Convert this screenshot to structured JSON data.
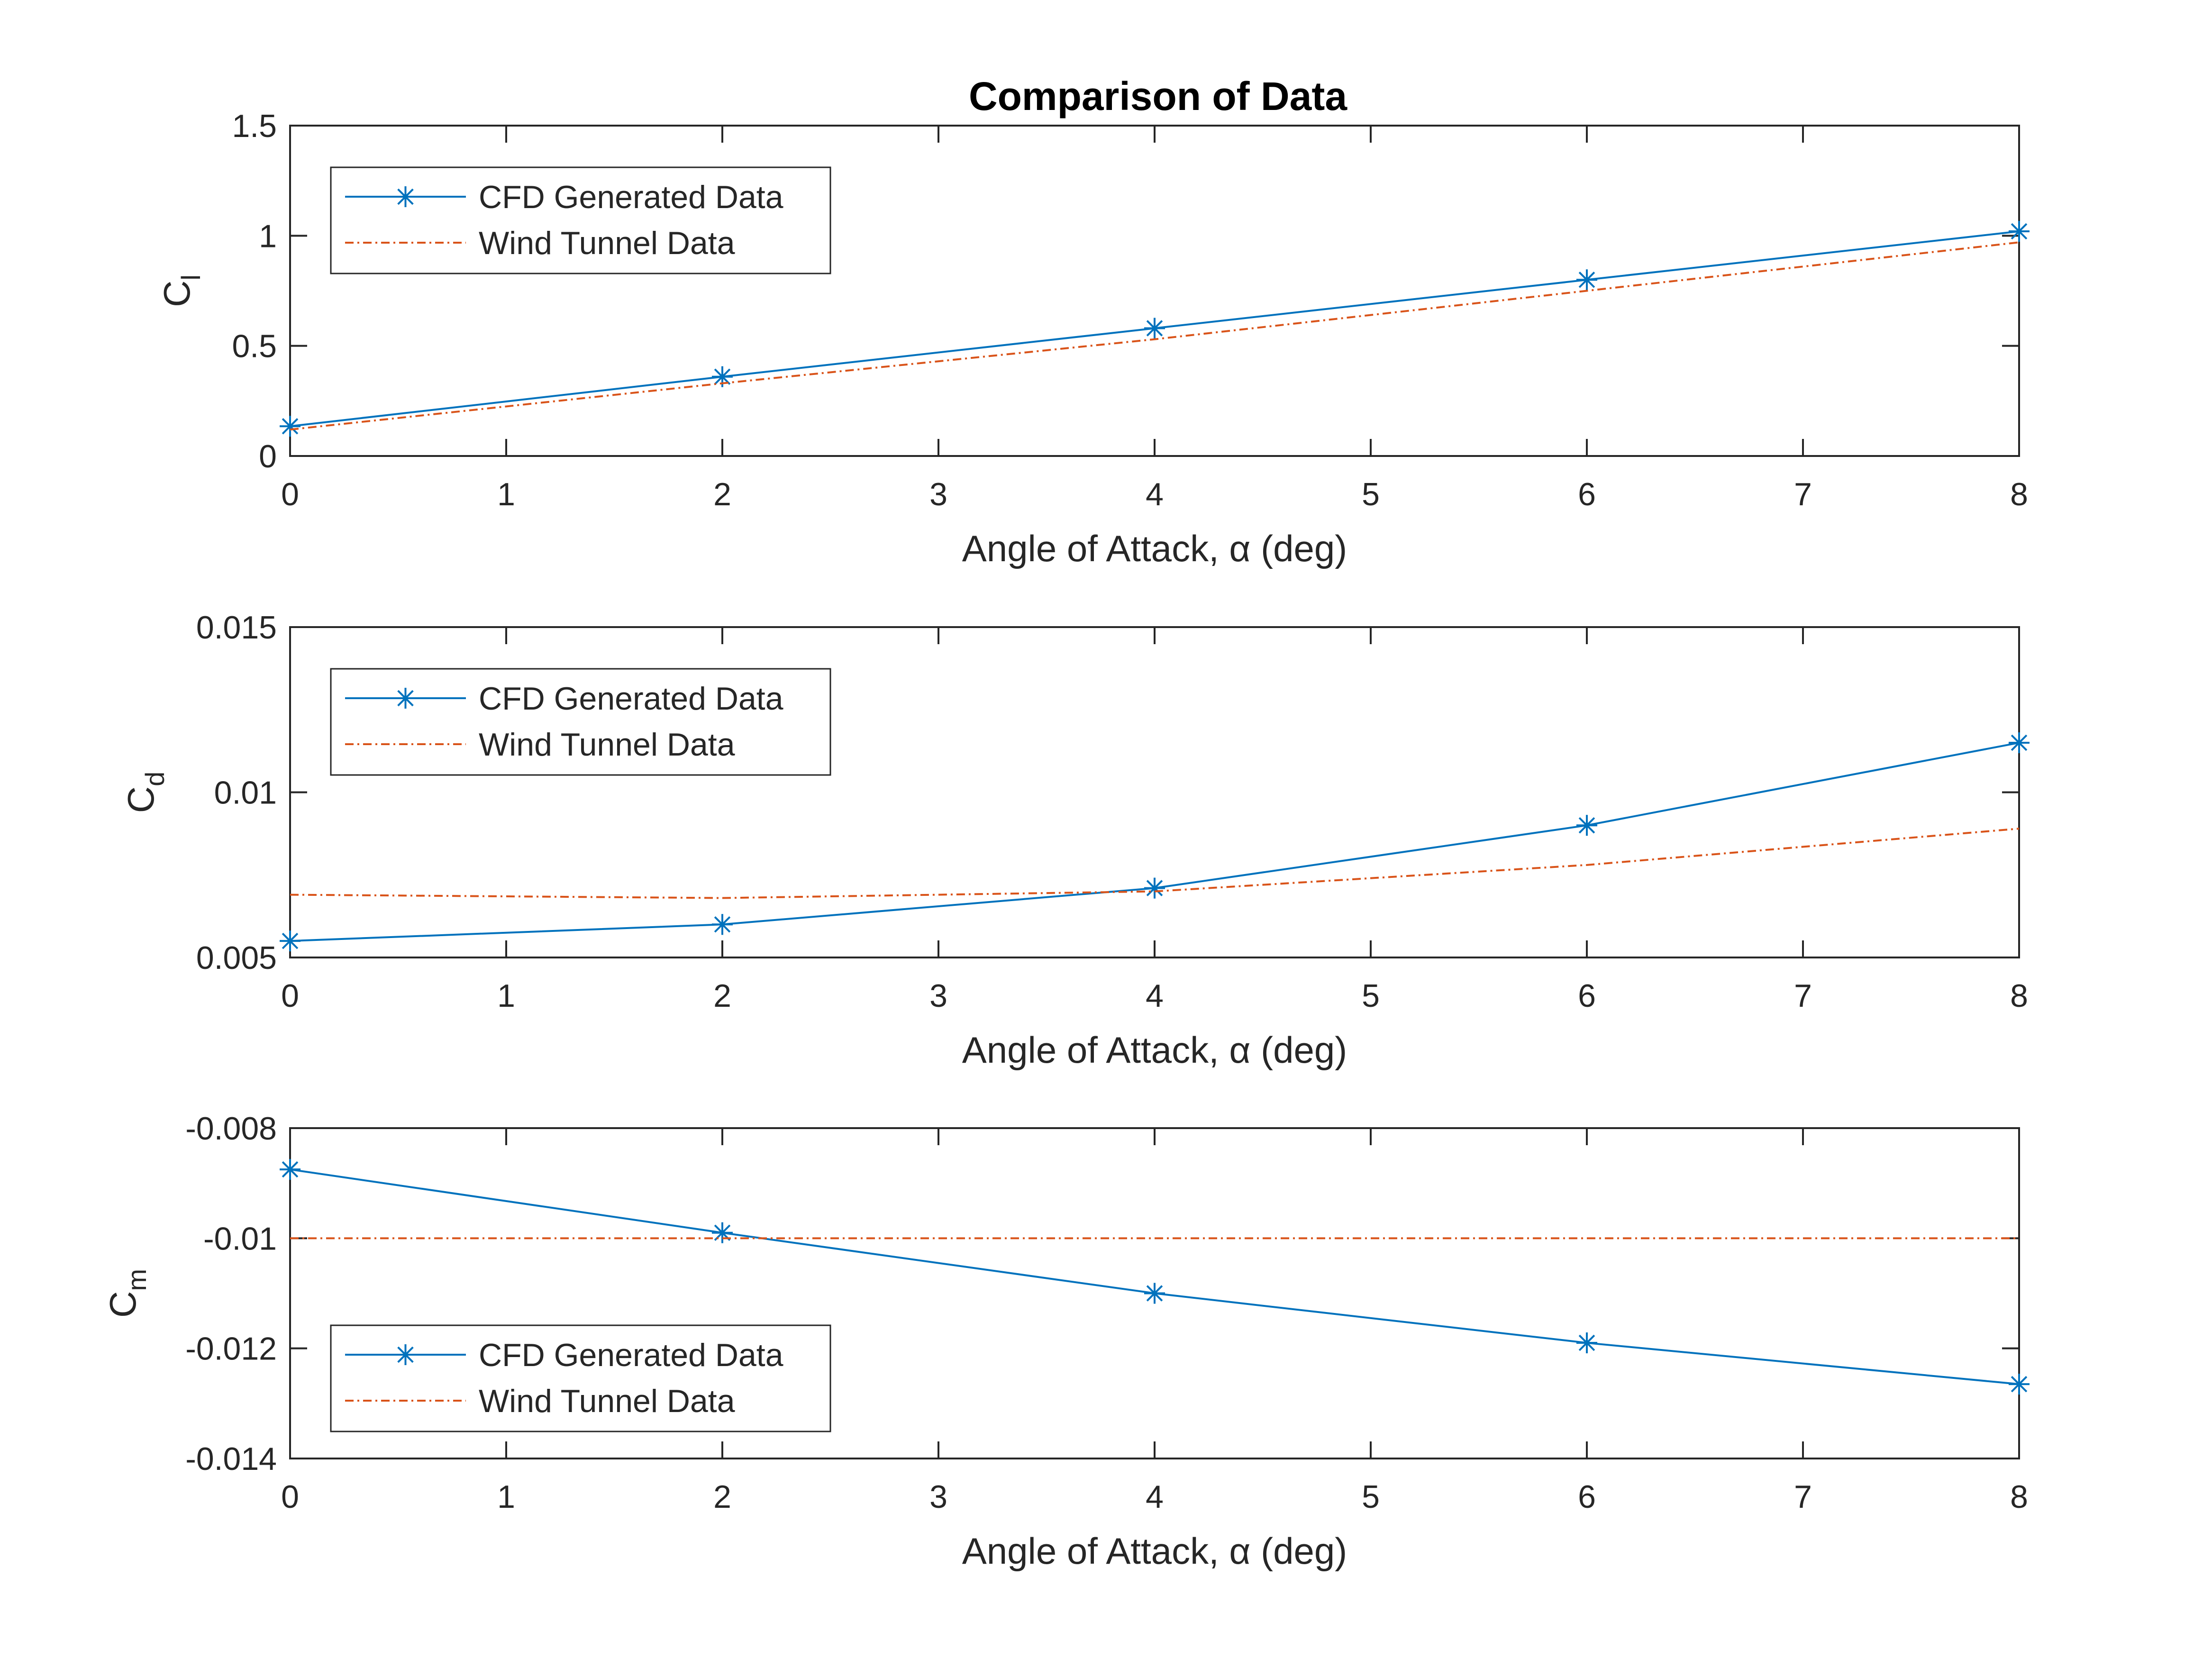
{
  "title": "Comparison of Data",
  "colors": {
    "cfd": "#0072BD",
    "wind": "#D95319",
    "axis": "#262626"
  },
  "chart_data": [
    {
      "type": "line",
      "title": "Comparison of Data",
      "xlabel": "Angle of Attack, α (deg)",
      "ylabel_main": "C",
      "ylabel_sub": "l",
      "xlim": [
        0,
        8
      ],
      "ylim": [
        0,
        1.5
      ],
      "xticks": [
        0,
        1,
        2,
        3,
        4,
        5,
        6,
        7,
        8
      ],
      "xtick_labels": [
        "0",
        "1",
        "2",
        "3",
        "4",
        "5",
        "6",
        "7",
        "8"
      ],
      "yticks": [
        0,
        0.5,
        1,
        1.5
      ],
      "ytick_labels": [
        "0",
        "0.5",
        "1",
        "1.5"
      ],
      "grid": false,
      "legend_position": "top-left",
      "series": [
        {
          "name": "CFD Generated Data",
          "style": "solid-star",
          "x": [
            0,
            2,
            4,
            6,
            8
          ],
          "y": [
            0.135,
            0.36,
            0.58,
            0.8,
            1.02
          ]
        },
        {
          "name": "Wind Tunnel Data",
          "style": "dashdot",
          "x": [
            0,
            2,
            4,
            6,
            8
          ],
          "y": [
            0.12,
            0.33,
            0.53,
            0.75,
            0.97
          ]
        }
      ]
    },
    {
      "type": "line",
      "title": "",
      "xlabel": "Angle of Attack, α (deg)",
      "ylabel_main": "C",
      "ylabel_sub": "d",
      "xlim": [
        0,
        8
      ],
      "ylim": [
        0.005,
        0.015
      ],
      "xticks": [
        0,
        1,
        2,
        3,
        4,
        5,
        6,
        7,
        8
      ],
      "xtick_labels": [
        "0",
        "1",
        "2",
        "3",
        "4",
        "5",
        "6",
        "7",
        "8"
      ],
      "yticks": [
        0.005,
        0.01,
        0.015
      ],
      "ytick_labels": [
        "0.005",
        "0.01",
        "0.015"
      ],
      "grid": false,
      "legend_position": "top-left",
      "series": [
        {
          "name": "CFD Generated Data",
          "style": "solid-star",
          "x": [
            0,
            2,
            4,
            6,
            8
          ],
          "y": [
            0.0055,
            0.006,
            0.0071,
            0.009,
            0.0115
          ]
        },
        {
          "name": "Wind Tunnel Data",
          "style": "dashdot",
          "x": [
            0,
            2,
            4,
            6,
            8
          ],
          "y": [
            0.0069,
            0.0068,
            0.007,
            0.0078,
            0.0089
          ]
        }
      ]
    },
    {
      "type": "line",
      "title": "",
      "xlabel": "Angle of Attack, α (deg)",
      "ylabel_main": "C",
      "ylabel_sub": "m",
      "xlim": [
        0,
        8
      ],
      "ylim": [
        -0.014,
        -0.008
      ],
      "xticks": [
        0,
        1,
        2,
        3,
        4,
        5,
        6,
        7,
        8
      ],
      "xtick_labels": [
        "0",
        "1",
        "2",
        "3",
        "4",
        "5",
        "6",
        "7",
        "8"
      ],
      "yticks": [
        -0.014,
        -0.012,
        -0.01,
        -0.008
      ],
      "ytick_labels": [
        "-0.014",
        "-0.012",
        "-0.01",
        "-0.008"
      ],
      "grid": false,
      "legend_position": "bottom-left",
      "series": [
        {
          "name": "CFD Generated Data",
          "style": "solid-star",
          "x": [
            0,
            2,
            4,
            6,
            8
          ],
          "y": [
            -0.00875,
            -0.0099,
            -0.011,
            -0.0119,
            -0.01265
          ]
        },
        {
          "name": "Wind Tunnel Data",
          "style": "dashdot",
          "x": [
            0,
            2,
            4,
            6,
            8
          ],
          "y": [
            -0.01,
            -0.01,
            -0.01,
            -0.01,
            -0.01
          ]
        }
      ]
    }
  ]
}
